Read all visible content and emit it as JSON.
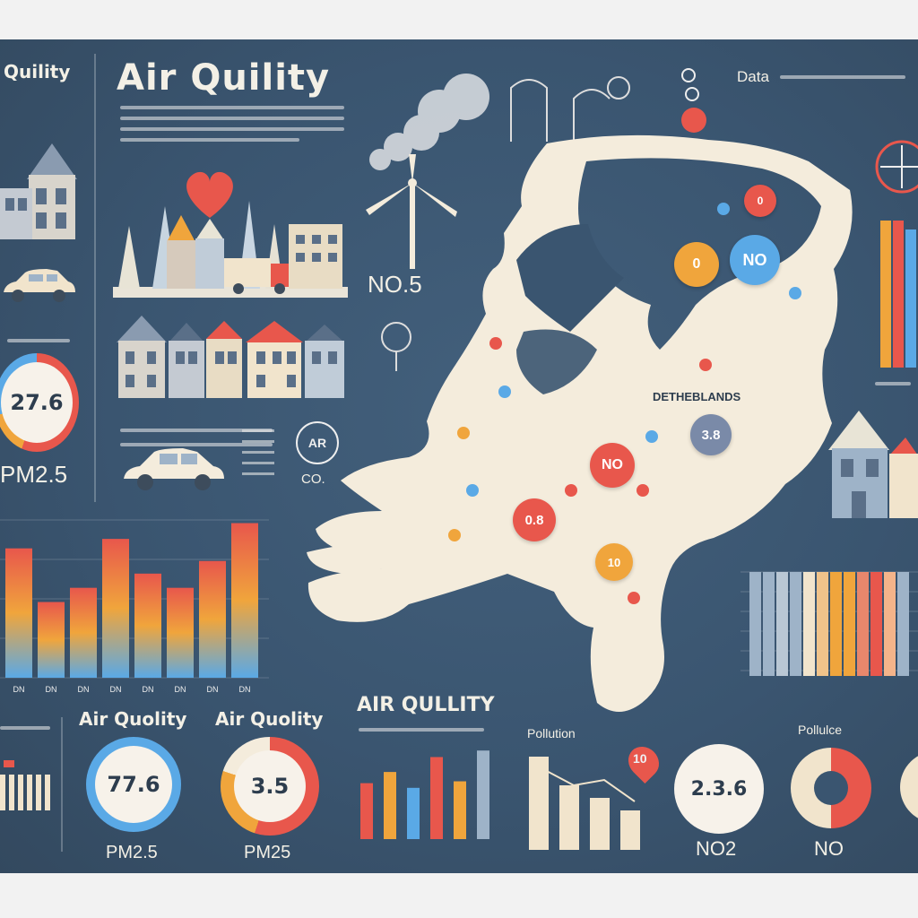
{
  "header": {
    "title": "Air Quility",
    "left_tab": "Quility",
    "data_caption": "Data"
  },
  "labels": {
    "no5": "NO.5",
    "netherlands": "DETHEBLANDS",
    "co": "CO.",
    "air_badge": "AR",
    "pm25_left": "PM2.5"
  },
  "gauges": {
    "left": {
      "value": "27.6",
      "caption": "PM2.5"
    },
    "bottom_1": {
      "title": "Air Quolity",
      "value": "77.6",
      "caption": "PM2.5"
    },
    "bottom_2": {
      "title": "Air Quolity",
      "value": "3.5",
      "caption": "PM25"
    },
    "bottom_3": {
      "value": "2.3.6",
      "caption": "NO2"
    },
    "bottom_4": {
      "caption": "NO"
    }
  },
  "bottom_panel": {
    "title": "AIR QULLITY",
    "pollution_label": "Pollution",
    "pollulce_label": "Pollulce",
    "pin_value": "10"
  },
  "map_markers": [
    {
      "text": "0",
      "color": "#e8574c"
    },
    {
      "text": "NO",
      "color": "#5aa9e6"
    },
    {
      "text": "0",
      "color": "#f0a53c"
    },
    {
      "text": "NO",
      "color": "#e8574c"
    },
    {
      "text": "0.8",
      "color": "#e8574c"
    },
    {
      "text": "10",
      "color": "#f0a53c"
    },
    {
      "text": "3.8",
      "color": "#7a8aa8"
    }
  ],
  "colors": {
    "board": "#3a5570",
    "map_fill": "#f4ecdc",
    "red": "#e8574c",
    "orange": "#f0a53c",
    "blue": "#5aa9e6",
    "cream": "#f3f0e6"
  },
  "chart_data": [
    {
      "type": "bar",
      "name_key": "left-bar-chart",
      "categories": [
        "DN",
        "DN",
        "DN",
        "DN",
        "DN",
        "DN",
        "DN",
        "DN"
      ],
      "values": [
        0.82,
        0.48,
        0.57,
        0.88,
        0.66,
        0.57,
        0.74,
        0.98
      ],
      "ylim": [
        0,
        1
      ]
    },
    {
      "type": "bar",
      "name_key": "right-bar-chart",
      "values": [
        1,
        1,
        1,
        1,
        1,
        1,
        1,
        1,
        1,
        1,
        1,
        1
      ],
      "ylim": [
        0,
        1
      ]
    },
    {
      "type": "bar",
      "name_key": "bottom-bar-chart",
      "values": [
        0.6,
        0.72,
        0.55,
        0.88,
        0.62,
        0.95
      ],
      "ylim": [
        0,
        1
      ]
    }
  ]
}
